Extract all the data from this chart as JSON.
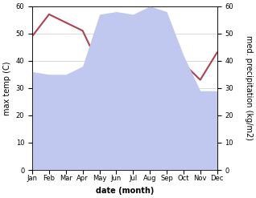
{
  "months": [
    "Jan",
    "Feb",
    "Mar",
    "Apr",
    "May",
    "Jun",
    "Jul",
    "Aug",
    "Sep",
    "Oct",
    "Nov",
    "Dec"
  ],
  "precipitation": [
    36,
    35,
    35,
    38,
    57,
    58,
    57,
    60,
    58,
    42,
    29,
    29
  ],
  "temperature": [
    49,
    57,
    54,
    51,
    38,
    35,
    35,
    35,
    39,
    39,
    33,
    43
  ],
  "temp_color": "#b04050",
  "precip_fill_color": "#c0c8f0",
  "ylim": [
    0,
    60
  ],
  "ylabel_left": "max temp (C)",
  "ylabel_right": "med. precipitation (kg/m2)",
  "xlabel": "date (month)",
  "bg_color": "#ffffff",
  "grid_color": "#cccccc",
  "title_fontsize": 7,
  "axis_fontsize": 7,
  "tick_fontsize": 6,
  "xlabel_fontsize": 7,
  "linewidth": 1.5
}
